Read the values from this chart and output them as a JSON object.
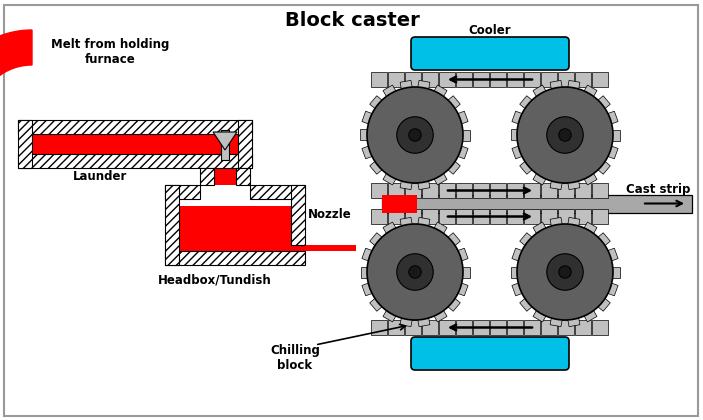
{
  "title": "Block caster",
  "title_fontsize": 14,
  "title_fontweight": "bold",
  "bg_color": "#ffffff",
  "border_color": "#999999",
  "label_launder": "Launder",
  "label_headbox": "Headbox/Tundish",
  "label_melt": "Melt from holding\nfurnace",
  "label_nozzle": "Nozzle",
  "label_cooler": "Cooler",
  "label_cast_strip": "Cast strip",
  "label_chilling": "Chilling\nblock",
  "red_color": "#ff0000",
  "cyan_color": "#00c0e8",
  "dark_gray": "#555555",
  "mid_gray": "#808080",
  "light_gray": "#c0c0c0",
  "strip_color": "#a8a8a8",
  "wheel_outer": "#606060",
  "wheel_inner": "#303030",
  "white": "#ffffff"
}
